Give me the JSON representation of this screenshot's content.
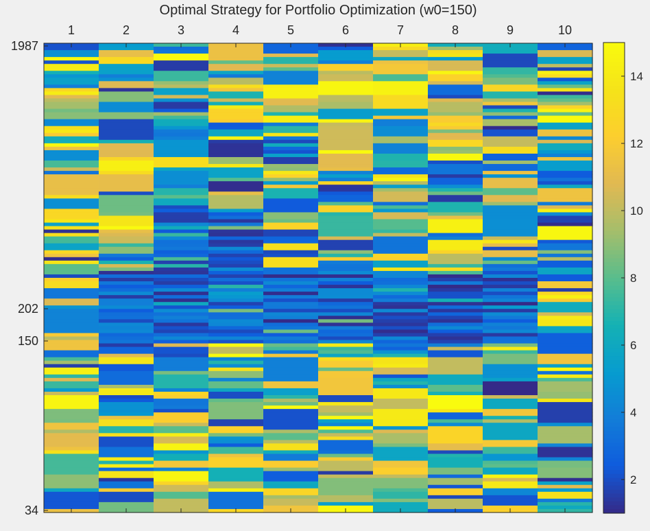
{
  "chart_data": {
    "type": "heatmap",
    "title": "Optimal Strategy for Portfolio Optimization (w0=150)",
    "x_ticks": [
      "1",
      "2",
      "3",
      "4",
      "5",
      "6",
      "7",
      "8",
      "9",
      "10"
    ],
    "y_ticks": [
      "1987",
      "202",
      "150",
      "34"
    ],
    "colorbar": {
      "min": 1,
      "max": 15,
      "ticks": [
        "2",
        "4",
        "6",
        "8",
        "10",
        "12",
        "14"
      ]
    },
    "colormap": "parula",
    "grid": false,
    "rows": 136,
    "columns": 10,
    "note_values": "cell values range 1–15; pattern of 136x10 cells approximated"
  }
}
